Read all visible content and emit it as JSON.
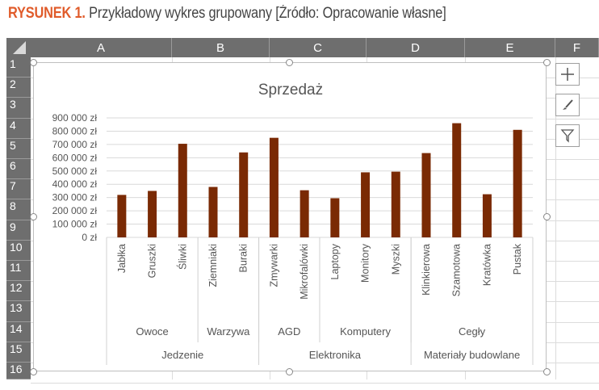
{
  "caption": {
    "label": "RYSUNEK 1.",
    "text": "Przykładowy wykres grupowany [Źródło: Opracowanie własne]"
  },
  "spreadsheet": {
    "columns": [
      "A",
      "B",
      "C",
      "D",
      "E",
      "F"
    ],
    "rows": [
      "1",
      "2",
      "3",
      "4",
      "5",
      "6",
      "7",
      "8",
      "9",
      "10",
      "11",
      "12",
      "13",
      "14",
      "15",
      "16"
    ]
  },
  "side_buttons": [
    "plus-icon",
    "brush-icon",
    "filter-icon"
  ],
  "colors": {
    "bar": "#7a2a04",
    "header_bg": "#6e6e6e",
    "caption_accent": "#e05b2a"
  },
  "chart_data": {
    "type": "bar",
    "title": "Sprzedaż",
    "ylim": [
      0,
      900000
    ],
    "yticks": [
      "0 zł",
      "100 000 zł",
      "200 000 zł",
      "300 000 zł",
      "400 000 zł",
      "500 000 zł",
      "600 000 zł",
      "700 000 zł",
      "800 000 zł",
      "900 000 zł"
    ],
    "grid": true,
    "legend": "none",
    "categories": [
      "Jabłka",
      "Gruszki",
      "Śliwki",
      "Ziemniaki",
      "Buraki",
      "Zmywarki",
      "Mikrofalówki",
      "Laptopy",
      "Monitory",
      "Myszki",
      "Klinkierowa",
      "Szamotowa",
      "Kratówka",
      "Pustak"
    ],
    "values": [
      320000,
      350000,
      705000,
      380000,
      640000,
      750000,
      355000,
      295000,
      490000,
      495000,
      635000,
      860000,
      325000,
      810000
    ],
    "subgroups": [
      {
        "label": "Owoce",
        "count": 3
      },
      {
        "label": "Warzywa",
        "count": 2
      },
      {
        "label": "AGD",
        "count": 2
      },
      {
        "label": "Komputery",
        "count": 3
      },
      {
        "label": "Cegły",
        "count": 4
      }
    ],
    "groups": [
      {
        "label": "Jedzenie",
        "count": 5
      },
      {
        "label": "Elektronika",
        "count": 5
      },
      {
        "label": "Materiały budowlane",
        "count": 4
      }
    ]
  }
}
